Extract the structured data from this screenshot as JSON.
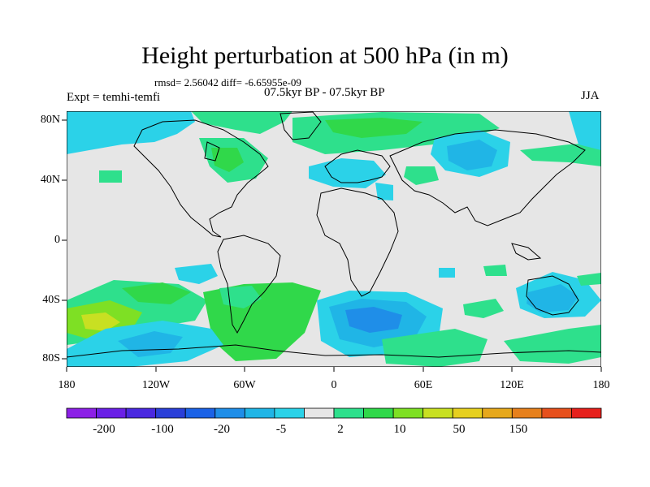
{
  "title": "Height perturbation at 500 hPa (in m)",
  "stats": "rmsd= 2.56042 diff= -6.65955e-09",
  "subtitle": "07.5kyr BP - 07.5kyr BP",
  "experiment": "Expt = temhi-temfi",
  "season": "JJA",
  "axes": {
    "lat_labels": [
      "80N",
      "40N",
      "0",
      "40S",
      "80S"
    ],
    "lon_labels": [
      "180",
      "120W",
      "60W",
      "0",
      "60E",
      "120E",
      "180"
    ]
  },
  "colorbar": {
    "colors": [
      "#8c20e6",
      "#6a1fe6",
      "#4a28e0",
      "#2a3fd8",
      "#1b62e6",
      "#1f8ee8",
      "#20b5e6",
      "#2bd2e8",
      "#e6e6e6",
      "#2ee08c",
      "#30d84a",
      "#7ee024",
      "#c8e022",
      "#e6d01f",
      "#e6a81c",
      "#e6801c",
      "#e6501c",
      "#e6201c"
    ],
    "labels": [
      "-200",
      "-100",
      "-20",
      "-5",
      "2",
      "10",
      "50",
      "150"
    ]
  }
}
